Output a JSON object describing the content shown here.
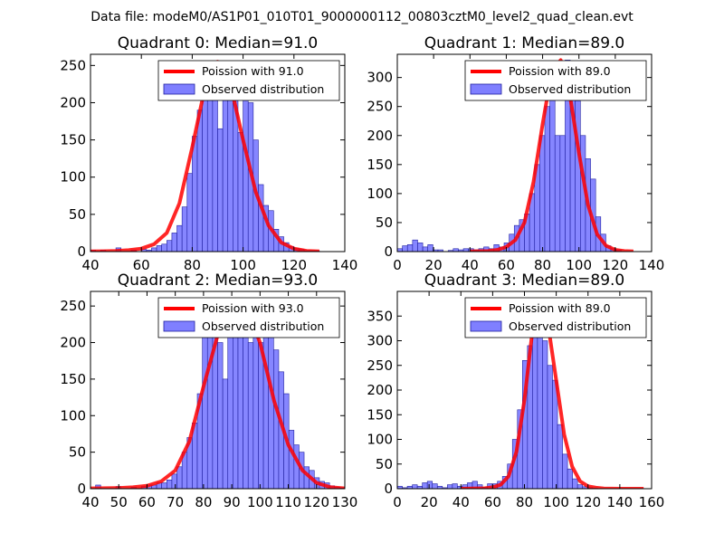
{
  "suptitle": "Data file: modeM0/AS1P01_010T01_9000000112_00803cztM0_level2_quad_clean.evt",
  "colors": {
    "line": "#ff0000",
    "bar_fill": "#7f7fff",
    "bar_edge": "#2020a0"
  },
  "chart_data": [
    {
      "type": "bar",
      "title": "Quadrant 0: Median=91.0",
      "legend": {
        "placement": "top-right",
        "line_label": "Poission with 91.0",
        "bar_label": "Observed distribution"
      },
      "xlim": [
        40,
        140
      ],
      "ylim": [
        0,
        265
      ],
      "xticks": [
        40,
        60,
        80,
        100,
        120,
        140
      ],
      "yticks": [
        0,
        50,
        100,
        150,
        200,
        250
      ],
      "bin_width": 2,
      "bin_start": [
        40,
        42,
        44,
        46,
        48,
        50,
        52,
        54,
        56,
        58,
        60,
        62,
        64,
        66,
        68,
        70,
        72,
        74,
        76,
        78,
        80,
        82,
        84,
        86,
        88,
        90,
        92,
        94,
        96,
        98,
        100,
        102,
        104,
        106,
        108,
        110,
        112,
        114,
        116,
        118,
        120,
        122,
        124,
        126,
        128,
        130,
        132,
        134,
        136,
        138
      ],
      "counts": [
        2,
        0,
        2,
        0,
        0,
        5,
        0,
        0,
        2,
        0,
        3,
        2,
        5,
        8,
        10,
        15,
        25,
        35,
        60,
        105,
        155,
        190,
        230,
        250,
        255,
        165,
        250,
        250,
        225,
        160,
        230,
        200,
        150,
        90,
        62,
        55,
        30,
        20,
        12,
        7,
        4,
        3,
        1,
        1,
        1,
        0,
        0,
        0,
        0,
        0
      ],
      "poisson_mean": 91,
      "poisson_x": [
        40,
        45,
        50,
        55,
        60,
        65,
        70,
        75,
        80,
        85,
        90,
        95,
        100,
        105,
        110,
        115,
        120,
        125,
        130
      ],
      "poisson_y": [
        0.3,
        0.5,
        1,
        2,
        4,
        10,
        25,
        65,
        140,
        220,
        255,
        225,
        150,
        80,
        35,
        12,
        4,
        1,
        0.3
      ]
    },
    {
      "type": "bar",
      "title": "Quadrant 1: Median=89.0",
      "legend": {
        "placement": "top-right",
        "line_label": "Poission with 89.0",
        "bar_label": "Observed distribution"
      },
      "xlim": [
        0,
        140
      ],
      "ylim": [
        0,
        340
      ],
      "xticks": [
        0,
        20,
        40,
        60,
        80,
        100,
        120,
        140
      ],
      "yticks": [
        0,
        50,
        100,
        150,
        200,
        250,
        300
      ],
      "bin_width": 2.8,
      "bin_start": [
        0,
        2.8,
        5.6,
        8.4,
        11.2,
        14,
        16.8,
        19.6,
        22.4,
        25.2,
        28,
        30.8,
        33.6,
        36.4,
        39.2,
        42,
        44.8,
        47.6,
        50.4,
        53.2,
        56,
        58.8,
        61.6,
        64.4,
        67.2,
        70,
        72.8,
        75.6,
        78.4,
        81.2,
        84,
        86.8,
        89.6,
        92.4,
        95.2,
        98,
        100.8,
        103.6,
        106.4,
        109.2,
        112,
        114.8,
        117.6,
        120.4,
        123.2,
        126,
        128.8,
        131.6,
        134.4,
        137.2
      ],
      "counts": [
        5,
        10,
        12,
        20,
        15,
        8,
        12,
        3,
        3,
        0,
        2,
        5,
        3,
        5,
        5,
        3,
        5,
        8,
        5,
        12,
        8,
        15,
        30,
        45,
        55,
        65,
        100,
        150,
        200,
        250,
        310,
        200,
        200,
        330,
        270,
        260,
        200,
        160,
        125,
        60,
        30,
        10,
        5,
        3,
        0,
        0,
        0,
        0,
        0,
        0
      ],
      "poisson_mean": 89,
      "poisson_x": [
        40,
        50,
        55,
        60,
        65,
        70,
        75,
        80,
        85,
        90,
        95,
        100,
        105,
        110,
        115,
        120,
        125,
        130
      ],
      "poisson_y": [
        0.3,
        1,
        3,
        8,
        20,
        50,
        120,
        220,
        310,
        330,
        270,
        170,
        80,
        30,
        10,
        3,
        1,
        0.3
      ]
    },
    {
      "type": "bar",
      "title": "Quadrant 2: Median=93.0",
      "legend": {
        "placement": "top-right",
        "line_label": "Poission with 93.0",
        "bar_label": "Observed distribution"
      },
      "xlim": [
        40,
        130
      ],
      "ylim": [
        0,
        270
      ],
      "xticks": [
        40,
        50,
        60,
        70,
        80,
        90,
        100,
        110,
        120,
        130
      ],
      "yticks": [
        0,
        50,
        100,
        150,
        200,
        250
      ],
      "bin_width": 1.8,
      "bin_start": [
        40,
        41.8,
        43.6,
        45.4,
        47.2,
        49,
        50.8,
        52.6,
        54.4,
        56.2,
        58,
        59.8,
        61.6,
        63.4,
        65.2,
        67,
        68.8,
        70.6,
        72.4,
        74.2,
        76,
        77.8,
        79.6,
        81.4,
        83.2,
        85,
        86.8,
        88.6,
        90.4,
        92.2,
        94,
        95.8,
        97.6,
        99.4,
        101.2,
        103,
        104.8,
        106.6,
        108.4,
        110.2,
        112,
        113.8,
        115.6,
        117.4,
        119.2,
        121,
        122.8,
        124.6,
        126.4,
        128.2
      ],
      "counts": [
        0,
        5,
        0,
        0,
        0,
        3,
        0,
        0,
        2,
        0,
        3,
        5,
        5,
        8,
        8,
        12,
        20,
        30,
        50,
        70,
        90,
        130,
        210,
        220,
        250,
        200,
        150,
        250,
        240,
        260,
        250,
        200,
        240,
        200,
        250,
        230,
        190,
        160,
        130,
        80,
        60,
        50,
        30,
        25,
        15,
        10,
        8,
        4,
        2,
        1
      ],
      "poisson_mean": 93,
      "poisson_x": [
        40,
        50,
        55,
        60,
        65,
        70,
        75,
        80,
        85,
        90,
        95,
        100,
        105,
        110,
        115,
        120,
        125,
        130
      ],
      "poisson_y": [
        0.5,
        1,
        2,
        4,
        10,
        25,
        65,
        140,
        210,
        255,
        250,
        200,
        120,
        60,
        25,
        8,
        2,
        0.5
      ]
    },
    {
      "type": "bar",
      "title": "Quadrant 3: Median=89.0",
      "legend": {
        "placement": "top-right",
        "line_label": "Poission with 89.0",
        "bar_label": "Observed distribution"
      },
      "xlim": [
        0,
        160
      ],
      "ylim": [
        0,
        400
      ],
      "xticks": [
        0,
        20,
        40,
        60,
        80,
        100,
        120,
        140,
        160
      ],
      "yticks": [
        0,
        50,
        100,
        150,
        200,
        250,
        300,
        350
      ],
      "bin_width": 3.15,
      "bin_start": [
        0,
        3.15,
        6.3,
        9.45,
        12.6,
        15.75,
        18.9,
        22.05,
        25.2,
        28.35,
        31.5,
        34.65,
        37.8,
        40.95,
        44.1,
        47.25,
        50.4,
        53.55,
        56.7,
        59.85,
        63,
        66.15,
        69.3,
        72.45,
        75.6,
        78.75,
        81.9,
        85.05,
        88.2,
        91.35,
        94.5,
        97.65,
        100.8,
        103.95,
        107.1,
        110.25,
        113.4,
        116.55,
        119.7,
        122.85,
        126,
        129.15,
        132.3,
        135.45,
        138.6,
        141.75,
        144.9,
        148.05,
        151.2,
        154.35
      ],
      "counts": [
        5,
        2,
        5,
        8,
        5,
        12,
        15,
        10,
        5,
        2,
        8,
        10,
        5,
        8,
        12,
        15,
        8,
        3,
        10,
        10,
        15,
        25,
        50,
        100,
        160,
        260,
        290,
        330,
        350,
        300,
        250,
        220,
        130,
        70,
        40,
        20,
        8,
        4,
        2,
        1,
        0,
        0,
        0,
        0,
        0,
        0,
        0,
        0,
        0,
        0
      ],
      "poisson_mean": 89,
      "poisson_x": [
        40,
        55,
        60,
        65,
        70,
        75,
        80,
        85,
        90,
        95,
        100,
        105,
        110,
        115,
        120,
        125,
        130,
        140,
        150,
        155
      ],
      "poisson_y": [
        0,
        1,
        3,
        8,
        25,
        75,
        180,
        320,
        370,
        330,
        220,
        110,
        45,
        15,
        5,
        2,
        0.5,
        0,
        0,
        0
      ]
    }
  ]
}
